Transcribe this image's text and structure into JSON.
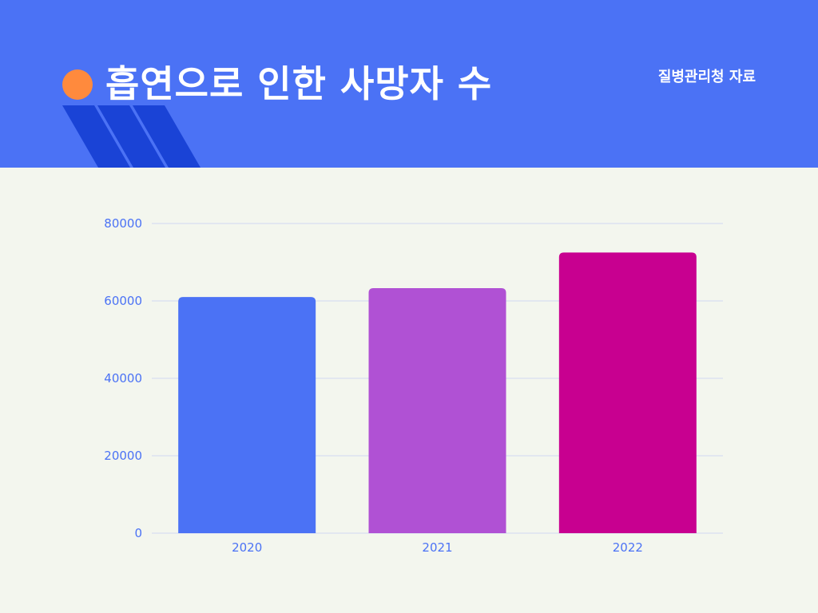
{
  "header": {
    "title": "흡연으로 인한 사망자 수",
    "source": "질병관리청 자료"
  },
  "colors": {
    "header_bg": "#4b72f5",
    "stripe": "#1a43d6",
    "dot": "#ff8a3d",
    "axis_text": "#4b72f5",
    "grid": "#dde2f0"
  },
  "chart_data": {
    "type": "bar",
    "title": "흡연으로 인한 사망자 수",
    "xlabel": "",
    "ylabel": "",
    "ylim": [
      0,
      80000
    ],
    "yticks": [
      0,
      20000,
      40000,
      60000,
      80000
    ],
    "grid": true,
    "categories": [
      "2020",
      "2021",
      "2022"
    ],
    "values": [
      61000,
      63300,
      72500
    ],
    "bar_colors": [
      "#4b72f5",
      "#b051d4",
      "#c80090"
    ]
  }
}
